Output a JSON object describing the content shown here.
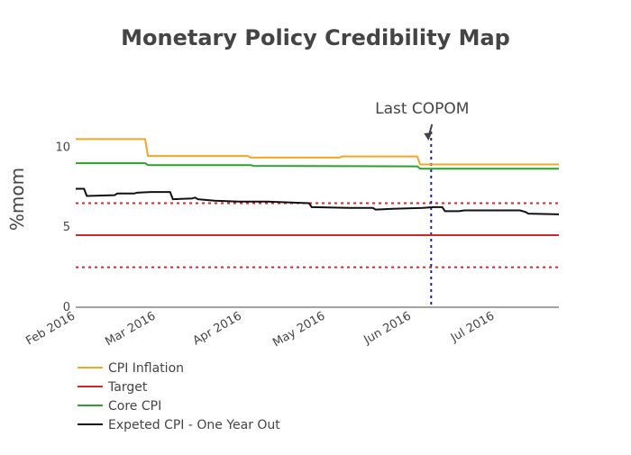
{
  "chart_data": {
    "type": "line",
    "title": "Monetary Policy Credibility Map",
    "xlabel": "",
    "ylabel": "%mom",
    "x_range": [
      "2016-02-01",
      "2016-07-24"
    ],
    "ylim": [
      0,
      13
    ],
    "yticks": [
      0,
      5,
      10
    ],
    "xticks": [
      {
        "date": "2016-02-01",
        "label": "Feb 2016"
      },
      {
        "date": "2016-03-01",
        "label": "Mar 2016"
      },
      {
        "date": "2016-04-01",
        "label": "Apr 2016"
      },
      {
        "date": "2016-05-01",
        "label": "May 2016"
      },
      {
        "date": "2016-06-01",
        "label": "Jun 2016"
      },
      {
        "date": "2016-07-01",
        "label": "Jul 2016"
      }
    ],
    "grid": false,
    "legend_position": "bottom-left",
    "series": [
      {
        "name": "CPI Inflation",
        "color": "#f5a623",
        "points": [
          [
            "2016-02-01",
            10.5
          ],
          [
            "2016-02-26",
            10.5
          ],
          [
            "2016-02-27",
            9.45
          ],
          [
            "2016-04-03",
            9.45
          ],
          [
            "2016-04-04",
            9.35
          ],
          [
            "2016-05-06",
            9.35
          ],
          [
            "2016-05-07",
            9.42
          ],
          [
            "2016-06-03",
            9.42
          ],
          [
            "2016-06-04",
            8.92
          ],
          [
            "2016-07-24",
            8.92
          ]
        ]
      },
      {
        "name": "Target",
        "color": "#d62728",
        "points": [
          [
            "2016-02-01",
            4.5
          ],
          [
            "2016-07-24",
            4.5
          ]
        ]
      },
      {
        "name": "Core CPI",
        "color": "#2ca02c",
        "points": [
          [
            "2016-02-01",
            9.0
          ],
          [
            "2016-02-26",
            9.0
          ],
          [
            "2016-02-27",
            8.88
          ],
          [
            "2016-04-04",
            8.88
          ],
          [
            "2016-04-05",
            8.83
          ],
          [
            "2016-06-03",
            8.8
          ],
          [
            "2016-06-04",
            8.65
          ],
          [
            "2016-07-24",
            8.65
          ]
        ]
      },
      {
        "name": "Expeted CPI - One Year Out",
        "color": "#111111",
        "points": [
          [
            "2016-02-01",
            7.4
          ],
          [
            "2016-02-04",
            7.4
          ],
          [
            "2016-02-05",
            6.95
          ],
          [
            "2016-02-15",
            7.0
          ],
          [
            "2016-02-16",
            7.1
          ],
          [
            "2016-02-22",
            7.1
          ],
          [
            "2016-02-23",
            7.15
          ],
          [
            "2016-02-28",
            7.2
          ],
          [
            "2016-03-06",
            7.2
          ],
          [
            "2016-03-07",
            6.75
          ],
          [
            "2016-03-14",
            6.8
          ],
          [
            "2016-03-15",
            6.85
          ],
          [
            "2016-03-16",
            6.75
          ],
          [
            "2016-03-22",
            6.65
          ],
          [
            "2016-03-31",
            6.6
          ],
          [
            "2016-04-10",
            6.6
          ],
          [
            "2016-04-25",
            6.5
          ],
          [
            "2016-04-26",
            6.25
          ],
          [
            "2016-05-10",
            6.2
          ],
          [
            "2016-05-18",
            6.2
          ],
          [
            "2016-05-19",
            6.1
          ],
          [
            "2016-05-25",
            6.15
          ],
          [
            "2016-06-05",
            6.2
          ],
          [
            "2016-06-09",
            6.25
          ],
          [
            "2016-06-12",
            6.25
          ],
          [
            "2016-06-13",
            6.0
          ],
          [
            "2016-06-18",
            6.0
          ],
          [
            "2016-06-20",
            6.05
          ],
          [
            "2016-07-10",
            6.05
          ],
          [
            "2016-07-12",
            5.95
          ],
          [
            "2016-07-13",
            5.85
          ],
          [
            "2016-07-24",
            5.8
          ]
        ]
      }
    ],
    "reference_lines": [
      {
        "type": "horizontal",
        "y": 6.5,
        "color": "#d62728",
        "style": "dotted"
      },
      {
        "type": "horizontal",
        "y": 2.5,
        "color": "#d62728",
        "style": "dotted"
      },
      {
        "type": "vertical",
        "x": "2016-06-08",
        "color": "#1f1fb4",
        "style": "dotted"
      }
    ],
    "annotations": [
      {
        "text": "Last COPOM",
        "x": "2016-06-08",
        "y": 11.2
      }
    ]
  }
}
